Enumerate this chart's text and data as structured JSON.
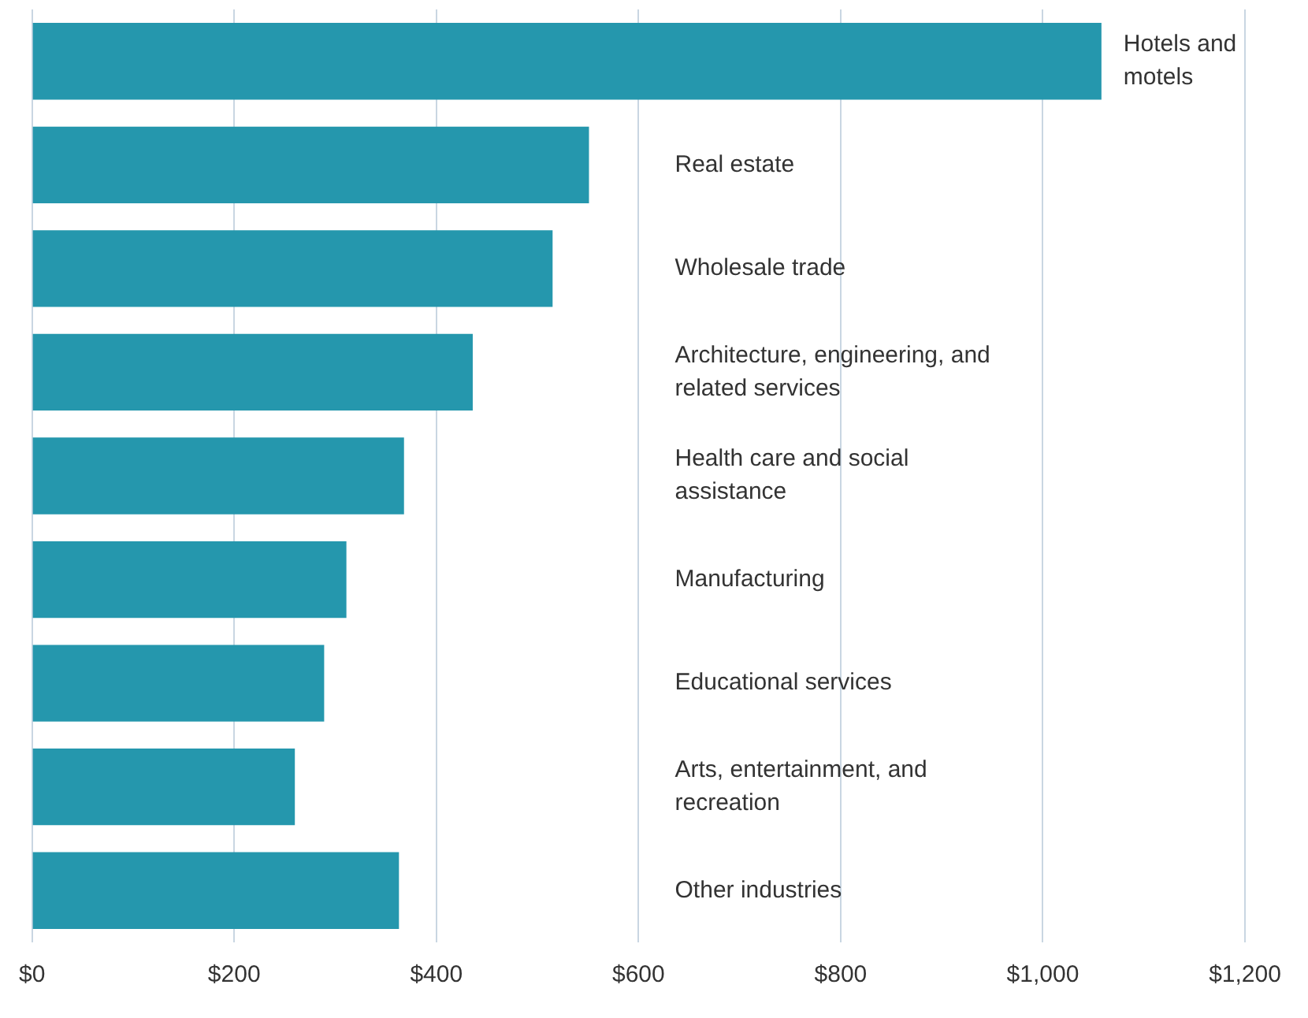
{
  "chart_data": {
    "type": "bar",
    "orientation": "horizontal",
    "categories": [
      "Hotels and motels",
      "Real estate",
      "Wholesale trade",
      "Architecture, engineering, and related services",
      "Health care and social assistance",
      "Manufacturing",
      "Educational services",
      "Arts, entertainment, and recreation",
      "Other industries"
    ],
    "values": [
      1058,
      551,
      515,
      436,
      368,
      311,
      289,
      260,
      363
    ],
    "color": "#2597ad",
    "xlim": [
      0,
      1200
    ],
    "xticks": [
      {
        "value": 0,
        "label": "$0"
      },
      {
        "value": 200,
        "label": "$200"
      },
      {
        "value": 400,
        "label": "$400"
      },
      {
        "value": 600,
        "label": "$600"
      },
      {
        "value": 800,
        "label": "$800"
      },
      {
        "value": 1000,
        "label": "$1,000"
      },
      {
        "value": 1200,
        "label": "$1,200"
      }
    ],
    "grid": "x",
    "legend": false,
    "tick_labels": "x"
  }
}
